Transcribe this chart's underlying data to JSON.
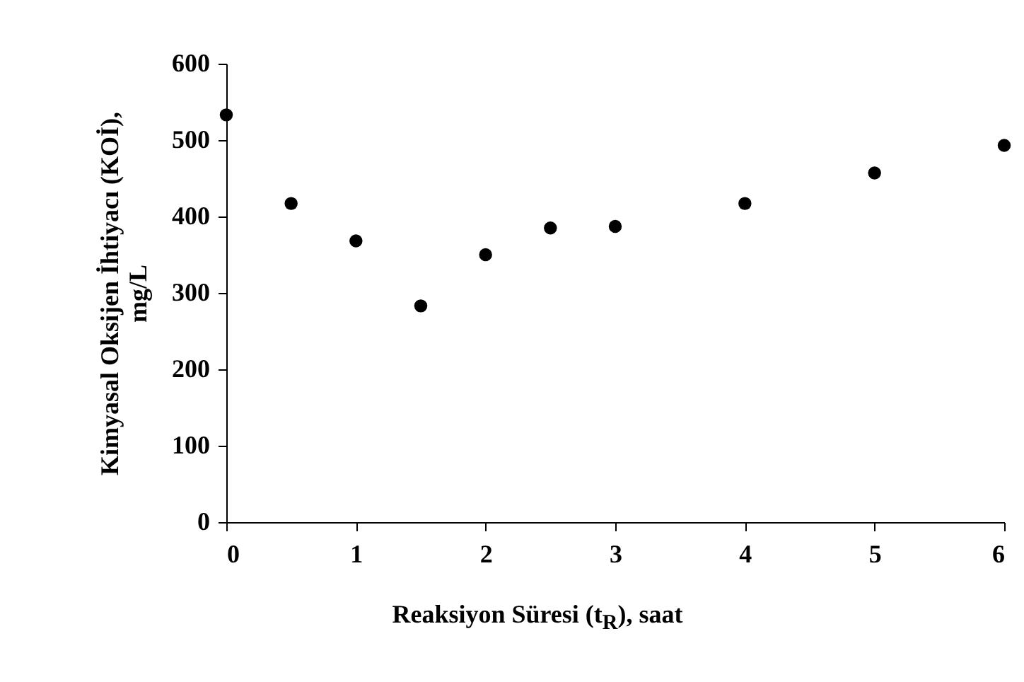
{
  "chart_data": {
    "type": "scatter",
    "xlabel": "Reaksiyon Süresi (t$_{R}$), saat",
    "ylabel": "Kimyasal Oksijen İhtiyacı (KOİ),\nmg/L",
    "x": [
      0,
      0.5,
      1,
      1.5,
      2,
      2.5,
      3,
      4,
      5,
      6
    ],
    "series": [
      {
        "color": "#000000",
        "values": [
          533,
          417,
          368,
          283,
          350,
          385,
          387,
          417,
          457,
          493
        ]
      }
    ],
    "xlim": [
      0,
      6
    ],
    "xticks": [
      0,
      1,
      2,
      3,
      4,
      5,
      6
    ],
    "ylim": [
      0,
      600
    ],
    "yticks": [
      0,
      100,
      200,
      300,
      400,
      500,
      600
    ],
    "grid": false,
    "marker": "circle"
  }
}
